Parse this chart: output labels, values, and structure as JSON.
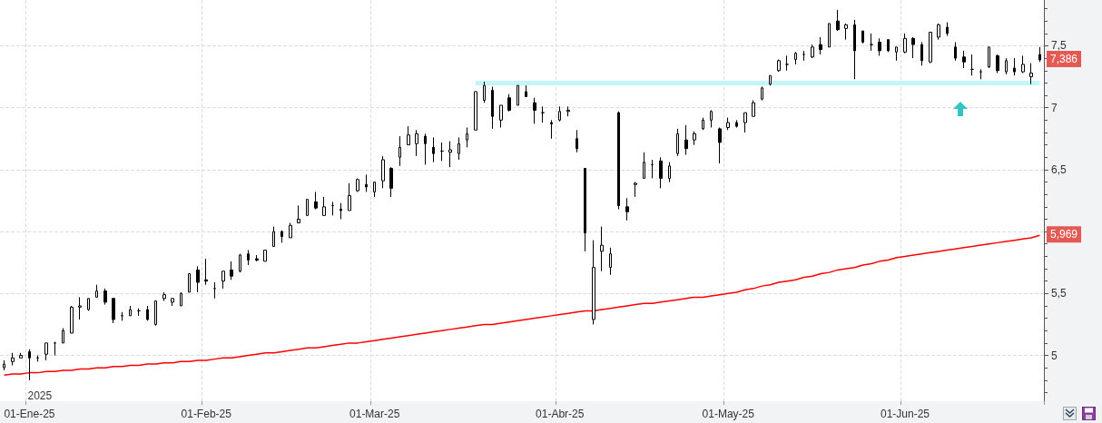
{
  "chart_data": {
    "type": "candlestick",
    "color": "#000000",
    "categories": [
      null,
      null,
      null,
      "01-Ene-25",
      null,
      null,
      null,
      null,
      null,
      null,
      null,
      null,
      null,
      null,
      null,
      null,
      null,
      null,
      null,
      null,
      null,
      null,
      null,
      null,
      "01-Feb-25",
      null,
      null,
      null,
      null,
      null,
      null,
      null,
      null,
      null,
      null,
      null,
      null,
      null,
      null,
      null,
      null,
      null,
      null,
      null,
      "01-Mar-25",
      null,
      null,
      null,
      null,
      null,
      null,
      null,
      null,
      null,
      null,
      null,
      null,
      null,
      null,
      null,
      null,
      null,
      null,
      null,
      null,
      null,
      "01-Abr-25",
      null,
      null,
      null,
      null,
      null,
      null,
      null,
      null,
      null,
      null,
      null,
      null,
      null,
      null,
      null,
      null,
      null,
      null,
      null,
      "01-May-25",
      null,
      null,
      null,
      null,
      null,
      null,
      null,
      null,
      null,
      null,
      null,
      null,
      null,
      null,
      null,
      null,
      null,
      null,
      null,
      null,
      "01-Jun-25",
      null,
      null,
      null,
      null,
      null,
      null,
      null,
      null,
      null,
      null,
      null,
      null,
      null,
      null,
      null,
      null
    ],
    "ohlc": [
      [
        4.9,
        4.96,
        4.88,
        4.93
      ],
      [
        4.95,
        5.02,
        4.92,
        4.98
      ],
      [
        4.98,
        5.02,
        4.98,
        5.0
      ],
      [
        5.03,
        5.05,
        4.8,
        4.98
      ],
      [
        4.98,
        5.0,
        4.95,
        4.98
      ],
      [
        5.01,
        5.1,
        4.96,
        5.1
      ],
      [
        5.1,
        5.11,
        5.0,
        5.1
      ],
      [
        5.1,
        5.22,
        5.1,
        5.2
      ],
      [
        5.18,
        5.4,
        5.18,
        5.39
      ],
      [
        5.39,
        5.47,
        5.29,
        5.4
      ],
      [
        5.37,
        5.46,
        5.36,
        5.46
      ],
      [
        5.47,
        5.57,
        5.47,
        5.52
      ],
      [
        5.52,
        5.54,
        5.41,
        5.43
      ],
      [
        5.46,
        5.46,
        5.26,
        5.29
      ],
      [
        5.32,
        5.35,
        5.28,
        5.32
      ],
      [
        5.32,
        5.4,
        5.32,
        5.37
      ],
      [
        5.36,
        5.38,
        5.32,
        5.36
      ],
      [
        5.37,
        5.4,
        5.28,
        5.29
      ],
      [
        5.25,
        5.44,
        5.24,
        5.44
      ],
      [
        5.46,
        5.51,
        5.44,
        5.49
      ],
      [
        5.43,
        5.46,
        5.4,
        5.46
      ],
      [
        5.4,
        5.51,
        5.4,
        5.5
      ],
      [
        5.51,
        5.66,
        5.51,
        5.66
      ],
      [
        5.69,
        5.72,
        5.51,
        5.59
      ],
      [
        5.61,
        5.78,
        5.57,
        5.6
      ],
      [
        5.54,
        5.59,
        5.46,
        5.54
      ],
      [
        5.6,
        5.68,
        5.54,
        5.68
      ],
      [
        5.69,
        5.76,
        5.61,
        5.64
      ],
      [
        5.68,
        5.82,
        5.67,
        5.81
      ],
      [
        5.82,
        5.85,
        5.73,
        5.77
      ],
      [
        5.78,
        5.81,
        5.76,
        5.77
      ],
      [
        5.76,
        5.85,
        5.76,
        5.85
      ],
      [
        5.88,
        6.04,
        5.88,
        6.0
      ],
      [
        6.0,
        6.01,
        5.91,
        5.96
      ],
      [
        5.95,
        6.07,
        5.95,
        6.05
      ],
      [
        6.07,
        6.21,
        6.07,
        6.1
      ],
      [
        6.13,
        6.26,
        6.13,
        6.26
      ],
      [
        6.24,
        6.32,
        6.18,
        6.19
      ],
      [
        6.13,
        6.28,
        6.13,
        6.2
      ],
      [
        6.21,
        6.24,
        6.13,
        6.21
      ],
      [
        6.18,
        6.23,
        6.1,
        6.17
      ],
      [
        6.17,
        6.39,
        6.17,
        6.29
      ],
      [
        6.33,
        6.43,
        6.32,
        6.42
      ],
      [
        6.38,
        6.46,
        6.32,
        6.36
      ],
      [
        6.32,
        6.4,
        6.28,
        6.4
      ],
      [
        6.41,
        6.61,
        6.35,
        6.58
      ],
      [
        6.51,
        6.52,
        6.28,
        6.35
      ],
      [
        6.6,
        6.77,
        6.53,
        6.68
      ],
      [
        6.7,
        6.85,
        6.7,
        6.78
      ],
      [
        6.71,
        6.82,
        6.61,
        6.79
      ],
      [
        6.77,
        6.79,
        6.54,
        6.71
      ],
      [
        6.68,
        6.76,
        6.56,
        6.63
      ],
      [
        6.65,
        6.72,
        6.57,
        6.65
      ],
      [
        6.64,
        6.73,
        6.52,
        6.66
      ],
      [
        6.63,
        6.76,
        6.58,
        6.71
      ],
      [
        6.74,
        6.84,
        6.68,
        6.79
      ],
      [
        6.82,
        7.13,
        6.82,
        7.13
      ],
      [
        7.06,
        7.21,
        7.04,
        7.18
      ],
      [
        7.14,
        7.17,
        6.83,
        6.93
      ],
      [
        6.9,
        7.02,
        6.84,
        7.02
      ],
      [
        7.08,
        7.11,
        6.97,
        6.98
      ],
      [
        7.02,
        7.18,
        7.02,
        7.18
      ],
      [
        7.13,
        7.18,
        7.09,
        7.09
      ],
      [
        7.04,
        7.08,
        6.87,
        6.98
      ],
      [
        6.96,
        7.01,
        6.88,
        6.96
      ],
      [
        6.88,
        6.9,
        6.75,
        6.87
      ],
      [
        6.9,
        7.01,
        6.89,
        6.97
      ],
      [
        6.97,
        7.01,
        6.93,
        6.98
      ],
      [
        6.75,
        6.82,
        6.64,
        6.67
      ],
      [
        6.51,
        6.51,
        5.84,
        5.99
      ],
      [
        5.29,
        5.93,
        5.25,
        5.71
      ],
      [
        5.84,
        6.04,
        5.68,
        5.89
      ],
      [
        5.71,
        5.87,
        5.65,
        5.82
      ],
      [
        6.96,
        6.97,
        6.18,
        6.21
      ],
      [
        6.2,
        6.27,
        6.09,
        6.16
      ],
      [
        6.38,
        6.4,
        6.28,
        6.39
      ],
      [
        6.43,
        6.64,
        6.43,
        6.56
      ],
      [
        6.54,
        6.58,
        6.43,
        6.54
      ],
      [
        6.57,
        6.6,
        6.35,
        6.43
      ],
      [
        6.43,
        6.56,
        6.4,
        6.53
      ],
      [
        6.63,
        6.83,
        6.61,
        6.79
      ],
      [
        6.74,
        6.86,
        6.62,
        6.67
      ],
      [
        6.74,
        6.81,
        6.7,
        6.79
      ],
      [
        6.83,
        6.92,
        6.82,
        6.9
      ],
      [
        6.9,
        6.98,
        6.84,
        6.97
      ],
      [
        6.83,
        6.84,
        6.55,
        6.72
      ],
      [
        6.84,
        6.92,
        6.82,
        6.88
      ],
      [
        6.88,
        6.9,
        6.84,
        6.85
      ],
      [
        6.88,
        6.96,
        6.8,
        6.96
      ],
      [
        6.93,
        7.06,
        6.93,
        7.04
      ],
      [
        7.07,
        7.17,
        7.06,
        7.16
      ],
      [
        7.19,
        7.26,
        7.18,
        7.26
      ],
      [
        7.3,
        7.39,
        7.29,
        7.38
      ],
      [
        7.35,
        7.42,
        7.3,
        7.35
      ],
      [
        7.39,
        7.45,
        7.35,
        7.44
      ],
      [
        7.43,
        7.46,
        7.38,
        7.43
      ],
      [
        7.41,
        7.51,
        7.4,
        7.49
      ],
      [
        7.51,
        7.57,
        7.43,
        7.47
      ],
      [
        7.49,
        7.68,
        7.49,
        7.68
      ],
      [
        7.7,
        7.79,
        7.62,
        7.63
      ],
      [
        7.64,
        7.68,
        7.55,
        7.67
      ],
      [
        7.67,
        7.71,
        7.23,
        7.46
      ],
      [
        7.62,
        7.62,
        7.52,
        7.53
      ],
      [
        7.51,
        7.6,
        7.46,
        7.51
      ],
      [
        7.53,
        7.56,
        7.42,
        7.46
      ],
      [
        7.55,
        7.55,
        7.45,
        7.46
      ],
      [
        7.45,
        7.49,
        7.38,
        7.49
      ],
      [
        7.45,
        7.6,
        7.44,
        7.56
      ],
      [
        7.56,
        7.57,
        7.4,
        7.51
      ],
      [
        7.51,
        7.53,
        7.34,
        7.38
      ],
      [
        7.37,
        7.61,
        7.36,
        7.61
      ],
      [
        7.57,
        7.68,
        7.55,
        7.67
      ],
      [
        7.65,
        7.69,
        7.58,
        7.6
      ],
      [
        7.49,
        7.53,
        7.38,
        7.4
      ],
      [
        7.41,
        7.46,
        7.32,
        7.37
      ],
      [
        7.31,
        7.43,
        7.26,
        7.31
      ],
      [
        7.29,
        7.31,
        7.23,
        7.29
      ],
      [
        7.33,
        7.49,
        7.32,
        7.49
      ],
      [
        7.42,
        7.43,
        7.28,
        7.3
      ],
      [
        7.29,
        7.4,
        7.27,
        7.38
      ],
      [
        7.32,
        7.4,
        7.26,
        7.29
      ],
      [
        7.29,
        7.42,
        7.28,
        7.35
      ],
      [
        7.25,
        7.36,
        7.19,
        7.28
      ],
      [
        7.43,
        7.49,
        7.37,
        7.386
      ]
    ],
    "series": [
      {
        "type": "line",
        "color": "#ff0000",
        "values": [
          4.84,
          4.85,
          4.85,
          4.86,
          4.86,
          4.87,
          4.87,
          4.88,
          4.88,
          4.89,
          4.89,
          4.9,
          4.9,
          4.91,
          4.91,
          4.92,
          4.92,
          4.93,
          4.93,
          4.94,
          4.94,
          4.95,
          4.95,
          4.96,
          4.96,
          4.97,
          4.98,
          4.98,
          4.99,
          5.0,
          5.01,
          5.02,
          5.02,
          5.03,
          5.04,
          5.05,
          5.06,
          5.06,
          5.07,
          5.08,
          5.09,
          5.1,
          5.1,
          5.11,
          5.12,
          5.13,
          5.14,
          5.15,
          5.16,
          5.17,
          5.18,
          5.19,
          5.2,
          5.21,
          5.22,
          5.23,
          5.24,
          5.25,
          5.25,
          5.26,
          5.27,
          5.28,
          5.29,
          5.3,
          5.31,
          5.32,
          5.33,
          5.34,
          5.35,
          5.36,
          5.36,
          5.37,
          5.38,
          5.39,
          5.4,
          5.41,
          5.42,
          5.42,
          5.43,
          5.44,
          5.45,
          5.46,
          5.47,
          5.47,
          5.48,
          5.49,
          5.5,
          5.51,
          5.53,
          5.54,
          5.56,
          5.57,
          5.59,
          5.6,
          5.61,
          5.63,
          5.64,
          5.66,
          5.67,
          5.69,
          5.7,
          5.71,
          5.73,
          5.74,
          5.76,
          5.77,
          5.79,
          5.8,
          5.81,
          5.82,
          5.83,
          5.84,
          5.85,
          5.86,
          5.87,
          5.88,
          5.89,
          5.9,
          5.91,
          5.92,
          5.93,
          5.94,
          5.95,
          5.969
        ]
      },
      {
        "type": "line",
        "color": "#c4f6f8",
        "values": [
          null,
          null,
          null,
          null,
          null,
          null,
          null,
          null,
          null,
          null,
          null,
          null,
          null,
          null,
          null,
          null,
          null,
          null,
          null,
          null,
          null,
          null,
          null,
          null,
          null,
          null,
          null,
          null,
          null,
          null,
          null,
          null,
          null,
          null,
          null,
          null,
          null,
          null,
          null,
          null,
          null,
          null,
          null,
          null,
          null,
          null,
          null,
          null,
          null,
          null,
          null,
          null,
          null,
          null,
          null,
          null,
          7.2,
          7.2,
          7.2,
          7.2,
          7.2,
          7.2,
          7.2,
          7.2,
          7.2,
          7.2,
          7.2,
          7.2,
          7.2,
          7.2,
          7.2,
          7.2,
          7.2,
          7.2,
          7.2,
          7.2,
          7.2,
          7.2,
          7.2,
          7.2,
          7.2,
          7.2,
          7.2,
          7.2,
          7.2,
          7.2,
          7.2,
          7.2,
          7.2,
          7.2,
          7.2,
          7.2,
          7.2,
          7.2,
          7.2,
          7.2,
          7.2,
          7.2,
          7.2,
          7.2,
          7.2,
          7.2,
          7.2,
          7.2,
          7.2,
          7.2,
          7.2,
          7.2,
          7.2,
          7.2,
          7.2,
          7.2,
          7.2,
          7.2,
          7.2,
          7.2,
          7.2,
          7.2,
          7.2,
          7.2,
          7.2,
          7.2,
          7.2,
          7.2
        ]
      }
    ],
    "ylim": [
      4.63,
      7.87
    ],
    "yticks": [
      5,
      {
        "value": 5.5,
        "label": "5,5"
      },
      {
        "value": 6,
        "label": null
      },
      {
        "value": 6.5,
        "label": "6,5"
      },
      7,
      {
        "value": 7.5,
        "label": "7,5"
      }
    ],
    "grid": true,
    "annotations": [
      "2025",
      {
        "text": "7,386",
        "y": 7.386
      },
      {
        "text": "5,969",
        "y": 5.969
      }
    ]
  }
}
